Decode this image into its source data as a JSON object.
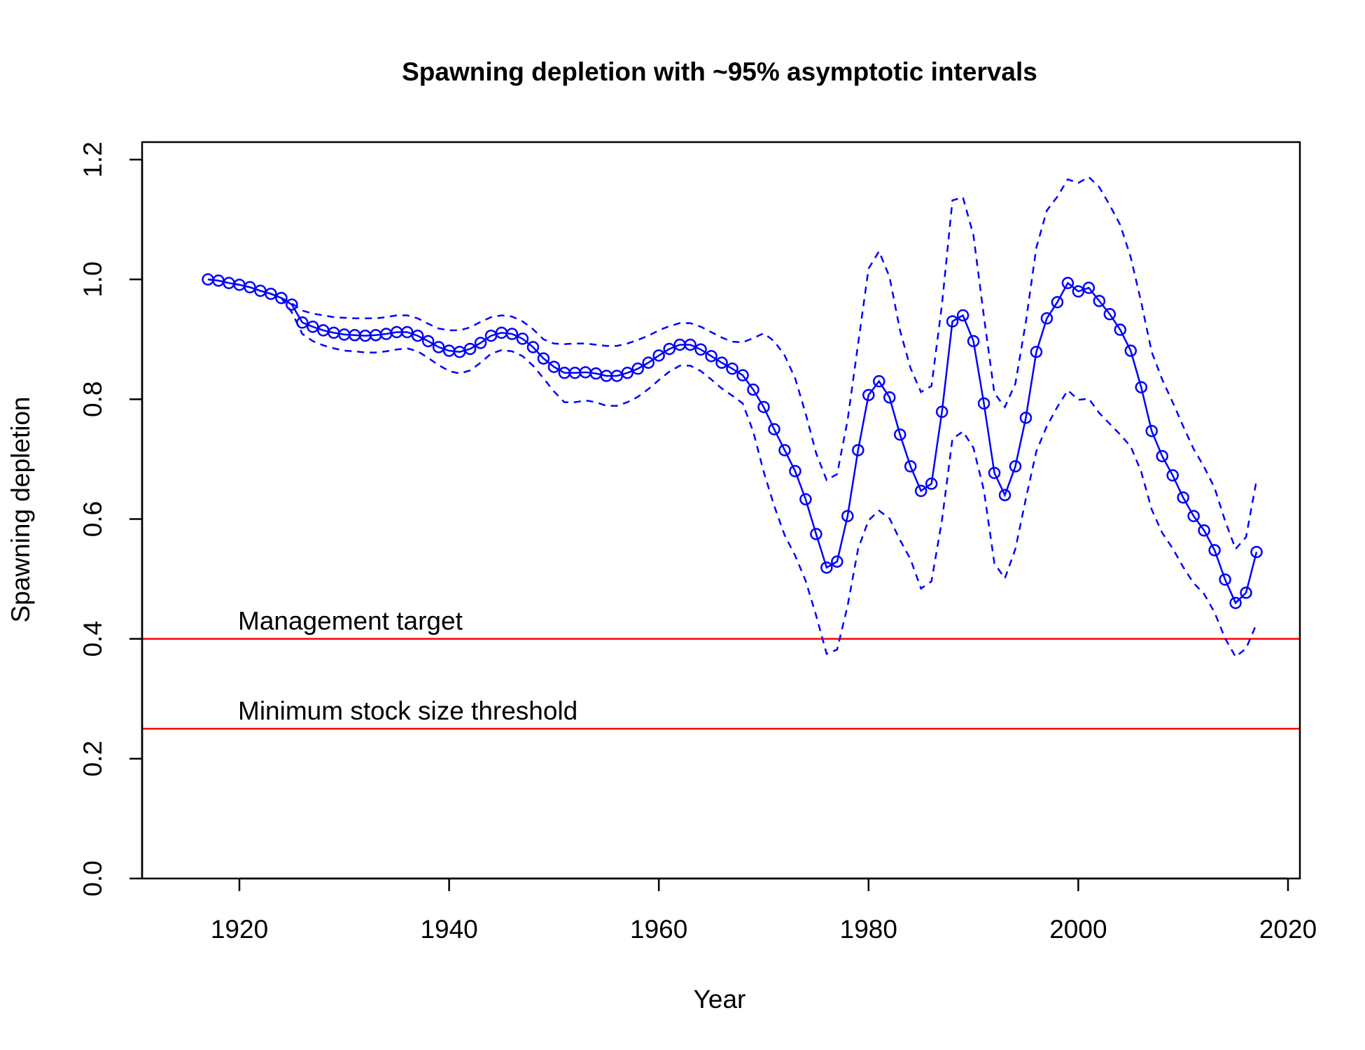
{
  "chart_data": {
    "type": "line",
    "title": "Spawning depletion with ~95% asymptotic intervals",
    "xlabel": "Year",
    "ylabel": "Spawning depletion",
    "xlim": [
      1910,
      2020
    ],
    "ylim": [
      0.0,
      1.2
    ],
    "x_ticks": [
      "1920",
      "1940",
      "1960",
      "1980",
      "2000",
      "2020"
    ],
    "y_ticks": [
      "0.0",
      "0.2",
      "0.4",
      "0.6",
      "0.8",
      "1.0",
      "1.2"
    ],
    "grid": false,
    "legend": "none",
    "colors": {
      "series": "#0000ff",
      "reference": "#ff0000",
      "axes": "#000000"
    },
    "x": [
      1917,
      1918,
      1919,
      1920,
      1921,
      1922,
      1923,
      1924,
      1925,
      1926,
      1927,
      1928,
      1929,
      1930,
      1931,
      1932,
      1933,
      1934,
      1935,
      1936,
      1937,
      1938,
      1939,
      1940,
      1941,
      1942,
      1943,
      1944,
      1945,
      1946,
      1947,
      1948,
      1949,
      1950,
      1951,
      1952,
      1953,
      1954,
      1955,
      1956,
      1957,
      1958,
      1959,
      1960,
      1961,
      1962,
      1963,
      1964,
      1965,
      1966,
      1967,
      1968,
      1969,
      1970,
      1971,
      1972,
      1973,
      1974,
      1975,
      1976,
      1977,
      1978,
      1979,
      1980,
      1981,
      1982,
      1983,
      1984,
      1985,
      1986,
      1987,
      1988,
      1989,
      1990,
      1991,
      1992,
      1993,
      1994,
      1995,
      1996,
      1997,
      1998,
      1999,
      2000,
      2001,
      2002,
      2003,
      2004,
      2005,
      2006,
      2007,
      2008,
      2009,
      2010,
      2011,
      2012,
      2013,
      2014,
      2015,
      2016,
      2017
    ],
    "series": [
      {
        "role": "estimate",
        "values": [
          1.0,
          0.998,
          0.994,
          0.991,
          0.987,
          0.981,
          0.976,
          0.969,
          0.958,
          0.928,
          0.921,
          0.915,
          0.911,
          0.908,
          0.907,
          0.906,
          0.907,
          0.909,
          0.912,
          0.912,
          0.906,
          0.897,
          0.887,
          0.881,
          0.879,
          0.884,
          0.894,
          0.906,
          0.911,
          0.909,
          0.901,
          0.887,
          0.868,
          0.854,
          0.844,
          0.844,
          0.845,
          0.843,
          0.839,
          0.839,
          0.844,
          0.851,
          0.861,
          0.873,
          0.884,
          0.891,
          0.891,
          0.883,
          0.872,
          0.861,
          0.851,
          0.84,
          0.816,
          0.787,
          0.75,
          0.715,
          0.68,
          0.633,
          0.575,
          0.519,
          0.529,
          0.605,
          0.715,
          0.807,
          0.83,
          0.803,
          0.741,
          0.688,
          0.647,
          0.659,
          0.779,
          0.93,
          0.94,
          0.897,
          0.793,
          0.677,
          0.64,
          0.688,
          0.769,
          0.879,
          0.935,
          0.962,
          0.994,
          0.98,
          0.986,
          0.964,
          0.942,
          0.916,
          0.881,
          0.82,
          0.747,
          0.705,
          0.673,
          0.636,
          0.605,
          0.581,
          0.548,
          0.499,
          0.46,
          0.477,
          0.545
        ]
      },
      {
        "role": "upper-95",
        "values": [
          1.0,
          0.998,
          0.994,
          0.991,
          0.987,
          0.981,
          0.976,
          0.969,
          0.96,
          0.948,
          0.943,
          0.94,
          0.937,
          0.936,
          0.935,
          0.935,
          0.935,
          0.937,
          0.94,
          0.94,
          0.935,
          0.926,
          0.918,
          0.915,
          0.915,
          0.92,
          0.929,
          0.937,
          0.94,
          0.938,
          0.93,
          0.917,
          0.9,
          0.893,
          0.892,
          0.893,
          0.893,
          0.891,
          0.889,
          0.889,
          0.893,
          0.899,
          0.906,
          0.915,
          0.922,
          0.927,
          0.927,
          0.921,
          0.912,
          0.903,
          0.896,
          0.895,
          0.902,
          0.91,
          0.897,
          0.873,
          0.835,
          0.776,
          0.71,
          0.665,
          0.675,
          0.765,
          0.892,
          1.018,
          1.047,
          1.004,
          0.915,
          0.852,
          0.812,
          0.822,
          0.958,
          1.132,
          1.137,
          1.074,
          0.938,
          0.81,
          0.787,
          0.826,
          0.929,
          1.053,
          1.115,
          1.138,
          1.167,
          1.161,
          1.171,
          1.154,
          1.124,
          1.091,
          1.037,
          0.962,
          0.879,
          0.833,
          0.795,
          0.755,
          0.717,
          0.687,
          0.652,
          0.597,
          0.55,
          0.57,
          0.665
        ]
      },
      {
        "role": "lower-95",
        "values": [
          1.0,
          0.998,
          0.994,
          0.991,
          0.987,
          0.981,
          0.976,
          0.969,
          0.945,
          0.909,
          0.897,
          0.89,
          0.885,
          0.881,
          0.88,
          0.878,
          0.878,
          0.88,
          0.883,
          0.885,
          0.88,
          0.869,
          0.857,
          0.847,
          0.843,
          0.848,
          0.861,
          0.876,
          0.882,
          0.88,
          0.872,
          0.856,
          0.835,
          0.813,
          0.795,
          0.795,
          0.798,
          0.795,
          0.789,
          0.789,
          0.795,
          0.804,
          0.817,
          0.832,
          0.846,
          0.856,
          0.856,
          0.847,
          0.833,
          0.818,
          0.806,
          0.793,
          0.746,
          0.679,
          0.622,
          0.573,
          0.539,
          0.497,
          0.439,
          0.375,
          0.382,
          0.455,
          0.55,
          0.598,
          0.614,
          0.601,
          0.565,
          0.533,
          0.484,
          0.496,
          0.598,
          0.734,
          0.746,
          0.719,
          0.648,
          0.526,
          0.501,
          0.55,
          0.634,
          0.713,
          0.755,
          0.787,
          0.815,
          0.799,
          0.801,
          0.777,
          0.759,
          0.741,
          0.721,
          0.679,
          0.616,
          0.577,
          0.551,
          0.52,
          0.493,
          0.475,
          0.444,
          0.401,
          0.37,
          0.384,
          0.425
        ]
      }
    ],
    "reference_lines": [
      {
        "y": 0.4,
        "label": "Management target"
      },
      {
        "y": 0.25,
        "label": "Minimum stock size threshold"
      }
    ]
  }
}
